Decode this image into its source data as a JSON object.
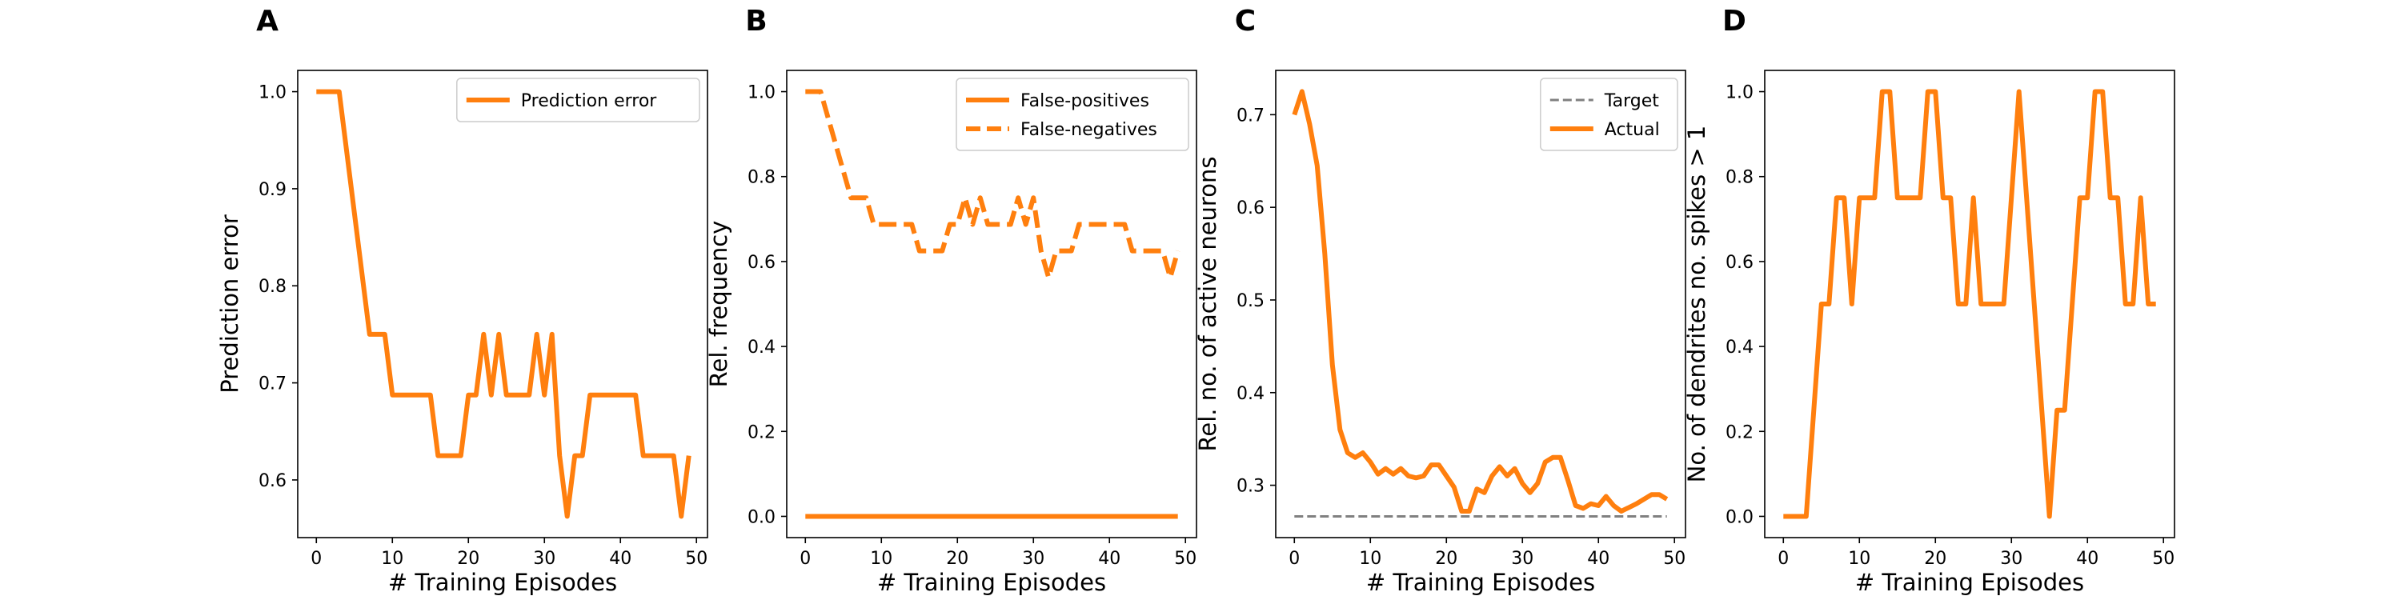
{
  "colors": {
    "accent": "#ff7f0e",
    "target": "#808080",
    "frame": "#000000",
    "legend_border": "#cccccc"
  },
  "chart_data": [
    {
      "type": "line",
      "panel_label": "A",
      "xlabel": "# Training Episodes",
      "ylabel": "Prediction error",
      "xlim": [
        -2.45,
        51.45
      ],
      "ylim": [
        0.5406,
        1.0219
      ],
      "xticks": [
        0,
        10,
        20,
        30,
        40,
        50
      ],
      "yticks": [
        0.6,
        0.7,
        0.8,
        0.9,
        1.0
      ],
      "ytick_labels": [
        "0.6",
        "0.7",
        "0.8",
        "0.9",
        "1.0"
      ],
      "legend_position": "top-right",
      "series": [
        {
          "name": "Prediction error",
          "style": "solid",
          "x": [
            0,
            1,
            2,
            3,
            4,
            5,
            6,
            7,
            8,
            9,
            10,
            11,
            12,
            13,
            14,
            15,
            16,
            17,
            18,
            19,
            20,
            21,
            22,
            23,
            24,
            25,
            26,
            27,
            28,
            29,
            30,
            31,
            32,
            33,
            34,
            35,
            36,
            37,
            38,
            39,
            40,
            41,
            42,
            43,
            44,
            45,
            46,
            47,
            48,
            49
          ],
          "y": [
            1.0,
            1.0,
            1.0,
            1.0,
            0.9375,
            0.875,
            0.8125,
            0.75,
            0.75,
            0.75,
            0.6875,
            0.6875,
            0.6875,
            0.6875,
            0.6875,
            0.6875,
            0.625,
            0.625,
            0.625,
            0.625,
            0.6875,
            0.6875,
            0.75,
            0.6875,
            0.75,
            0.6875,
            0.6875,
            0.6875,
            0.6875,
            0.75,
            0.6875,
            0.75,
            0.625,
            0.5625,
            0.625,
            0.625,
            0.6875,
            0.6875,
            0.6875,
            0.6875,
            0.6875,
            0.6875,
            0.6875,
            0.625,
            0.625,
            0.625,
            0.625,
            0.625,
            0.5625,
            0.625
          ]
        }
      ]
    },
    {
      "type": "line",
      "panel_label": "B",
      "xlabel": "# Training Episodes",
      "ylabel": "Rel. frequency",
      "xlim": [
        -2.45,
        51.45
      ],
      "ylim": [
        -0.05,
        1.05
      ],
      "xticks": [
        0,
        10,
        20,
        30,
        40,
        50
      ],
      "yticks": [
        0.0,
        0.2,
        0.4,
        0.6,
        0.8,
        1.0
      ],
      "ytick_labels": [
        "0.0",
        "0.2",
        "0.4",
        "0.6",
        "0.8",
        "1.0"
      ],
      "legend_position": "top-right",
      "series": [
        {
          "name": "False-positives",
          "style": "solid",
          "x": [
            0,
            49
          ],
          "y": [
            0.0,
            0.0
          ]
        },
        {
          "name": "False-negatives",
          "style": "dashed",
          "x": [
            0,
            1,
            2,
            3,
            4,
            5,
            6,
            7,
            8,
            9,
            10,
            11,
            12,
            13,
            14,
            15,
            16,
            17,
            18,
            19,
            20,
            21,
            22,
            23,
            24,
            25,
            26,
            27,
            28,
            29,
            30,
            31,
            32,
            33,
            34,
            35,
            36,
            37,
            38,
            39,
            40,
            41,
            42,
            43,
            44,
            45,
            46,
            47,
            48,
            49
          ],
          "y": [
            1.0,
            1.0,
            1.0,
            0.9375,
            0.875,
            0.8125,
            0.75,
            0.75,
            0.75,
            0.6875,
            0.6875,
            0.6875,
            0.6875,
            0.6875,
            0.6875,
            0.625,
            0.625,
            0.625,
            0.625,
            0.6875,
            0.6875,
            0.75,
            0.6875,
            0.75,
            0.6875,
            0.6875,
            0.6875,
            0.6875,
            0.75,
            0.6875,
            0.75,
            0.625,
            0.5625,
            0.625,
            0.625,
            0.625,
            0.6875,
            0.6875,
            0.6875,
            0.6875,
            0.6875,
            0.6875,
            0.6875,
            0.625,
            0.625,
            0.625,
            0.625,
            0.625,
            0.5625,
            0.625
          ]
        }
      ]
    },
    {
      "type": "line",
      "panel_label": "C",
      "xlabel": "# Training Episodes",
      "ylabel": "Rel. no. of active neurons",
      "xlim": [
        -2.45,
        51.45
      ],
      "ylim": [
        0.2435,
        0.7478
      ],
      "xticks": [
        0,
        10,
        20,
        30,
        40,
        50
      ],
      "yticks": [
        0.3,
        0.4,
        0.5,
        0.6,
        0.7
      ],
      "ytick_labels": [
        "0.3",
        "0.4",
        "0.5",
        "0.6",
        "0.7"
      ],
      "legend_position": "top-right",
      "series": [
        {
          "name": "Target",
          "style": "dashed-thin",
          "x": [
            0,
            49
          ],
          "y": [
            0.2664,
            0.2664
          ]
        },
        {
          "name": "Actual",
          "style": "solid",
          "x": [
            0,
            1,
            2,
            3,
            4,
            5,
            6,
            7,
            8,
            9,
            10,
            11,
            12,
            13,
            14,
            15,
            16,
            17,
            18,
            19,
            20,
            21,
            22,
            23,
            24,
            25,
            26,
            27,
            28,
            29,
            30,
            31,
            32,
            33,
            34,
            35,
            36,
            37,
            38,
            39,
            40,
            41,
            42,
            43,
            44,
            45,
            46,
            47,
            48,
            49
          ],
          "y": [
            0.7,
            0.725,
            0.69,
            0.645,
            0.55,
            0.43,
            0.36,
            0.335,
            0.33,
            0.335,
            0.325,
            0.312,
            0.318,
            0.312,
            0.318,
            0.31,
            0.308,
            0.31,
            0.322,
            0.322,
            0.31,
            0.298,
            0.272,
            0.272,
            0.296,
            0.292,
            0.31,
            0.32,
            0.31,
            0.318,
            0.302,
            0.292,
            0.302,
            0.325,
            0.33,
            0.33,
            0.305,
            0.278,
            0.275,
            0.28,
            0.278,
            0.288,
            0.278,
            0.272,
            0.276,
            0.28,
            0.285,
            0.29,
            0.29,
            0.285
          ]
        }
      ]
    },
    {
      "type": "line",
      "panel_label": "D",
      "xlabel": "# Training Episodes",
      "ylabel": "No. of dendrites no. spikes > 1",
      "xlim": [
        -2.45,
        51.45
      ],
      "ylim": [
        -0.05,
        1.05
      ],
      "xticks": [
        0,
        10,
        20,
        30,
        40,
        50
      ],
      "yticks": [
        0.0,
        0.2,
        0.4,
        0.6,
        0.8,
        1.0
      ],
      "ytick_labels": [
        "0.0",
        "0.2",
        "0.4",
        "0.6",
        "0.8",
        "1.0"
      ],
      "legend_position": "none",
      "series": [
        {
          "name": "",
          "style": "solid",
          "x": [
            0,
            1,
            2,
            3,
            4,
            5,
            6,
            7,
            8,
            9,
            10,
            11,
            12,
            13,
            14,
            15,
            16,
            17,
            18,
            19,
            20,
            21,
            22,
            23,
            24,
            25,
            26,
            27,
            28,
            29,
            30,
            31,
            32,
            33,
            34,
            35,
            36,
            37,
            38,
            39,
            40,
            41,
            42,
            43,
            44,
            45,
            46,
            47,
            48,
            49
          ],
          "y": [
            0.0,
            0.0,
            0.0,
            0.0,
            0.25,
            0.5,
            0.5,
            0.75,
            0.75,
            0.5,
            0.75,
            0.75,
            0.75,
            1.0,
            1.0,
            0.75,
            0.75,
            0.75,
            0.75,
            1.0,
            1.0,
            0.75,
            0.75,
            0.5,
            0.5,
            0.75,
            0.5,
            0.5,
            0.5,
            0.5,
            0.75,
            1.0,
            0.75,
            0.5,
            0.25,
            0.0,
            0.25,
            0.25,
            0.5,
            0.75,
            0.75,
            1.0,
            1.0,
            0.75,
            0.75,
            0.5,
            0.5,
            0.75,
            0.5,
            0.5
          ]
        }
      ]
    }
  ]
}
